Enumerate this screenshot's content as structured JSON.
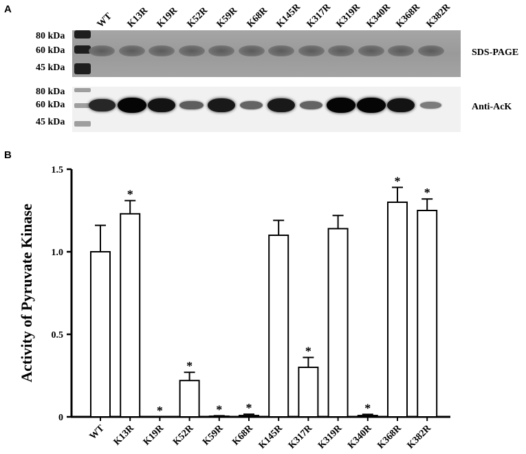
{
  "panels": {
    "a": "A",
    "b": "B"
  },
  "blot": {
    "lanes": [
      "WT",
      "K13R",
      "K19R",
      "K52R",
      "K59R",
      "K68R",
      "K145R",
      "K317R",
      "K319R",
      "K340R",
      "K368R",
      "K382R"
    ],
    "markers": [
      "80 kDa",
      "60 kDa",
      "45 kDa"
    ],
    "sds_label": "SDS-PAGE",
    "western_label": "Anti-AcK",
    "western_band_intensity": [
      0.75,
      1.0,
      0.9,
      0.35,
      0.85,
      0.3,
      0.85,
      0.3,
      1.0,
      1.0,
      0.9,
      0.12
    ]
  },
  "chart_data": {
    "type": "bar",
    "ylabel": "Activity of Pyruvate Kinase",
    "xlabel": "",
    "ylim": [
      0,
      1.5
    ],
    "yticks": [
      "0",
      "0.5",
      "1.0",
      "1.5"
    ],
    "categories": [
      "WT",
      "K13R",
      "K19R",
      "K52R",
      "K59R",
      "K68R",
      "K145R",
      "K317R",
      "K319R",
      "K340R",
      "K368R",
      "K382R"
    ],
    "values": [
      1.0,
      1.23,
      0.0,
      0.22,
      0.004,
      0.008,
      1.1,
      0.3,
      1.14,
      0.008,
      1.3,
      1.25
    ],
    "errors": [
      0.16,
      0.08,
      0.0,
      0.05,
      0.003,
      0.008,
      0.09,
      0.06,
      0.08,
      0.007,
      0.09,
      0.07
    ],
    "significance": [
      "",
      "*",
      "*",
      "*",
      "*",
      "*",
      "",
      "*",
      "",
      "*",
      "*",
      "*"
    ],
    "colors": {
      "bar_fill": "#ffffff",
      "bar_stroke": "#000000"
    },
    "grid": false
  }
}
